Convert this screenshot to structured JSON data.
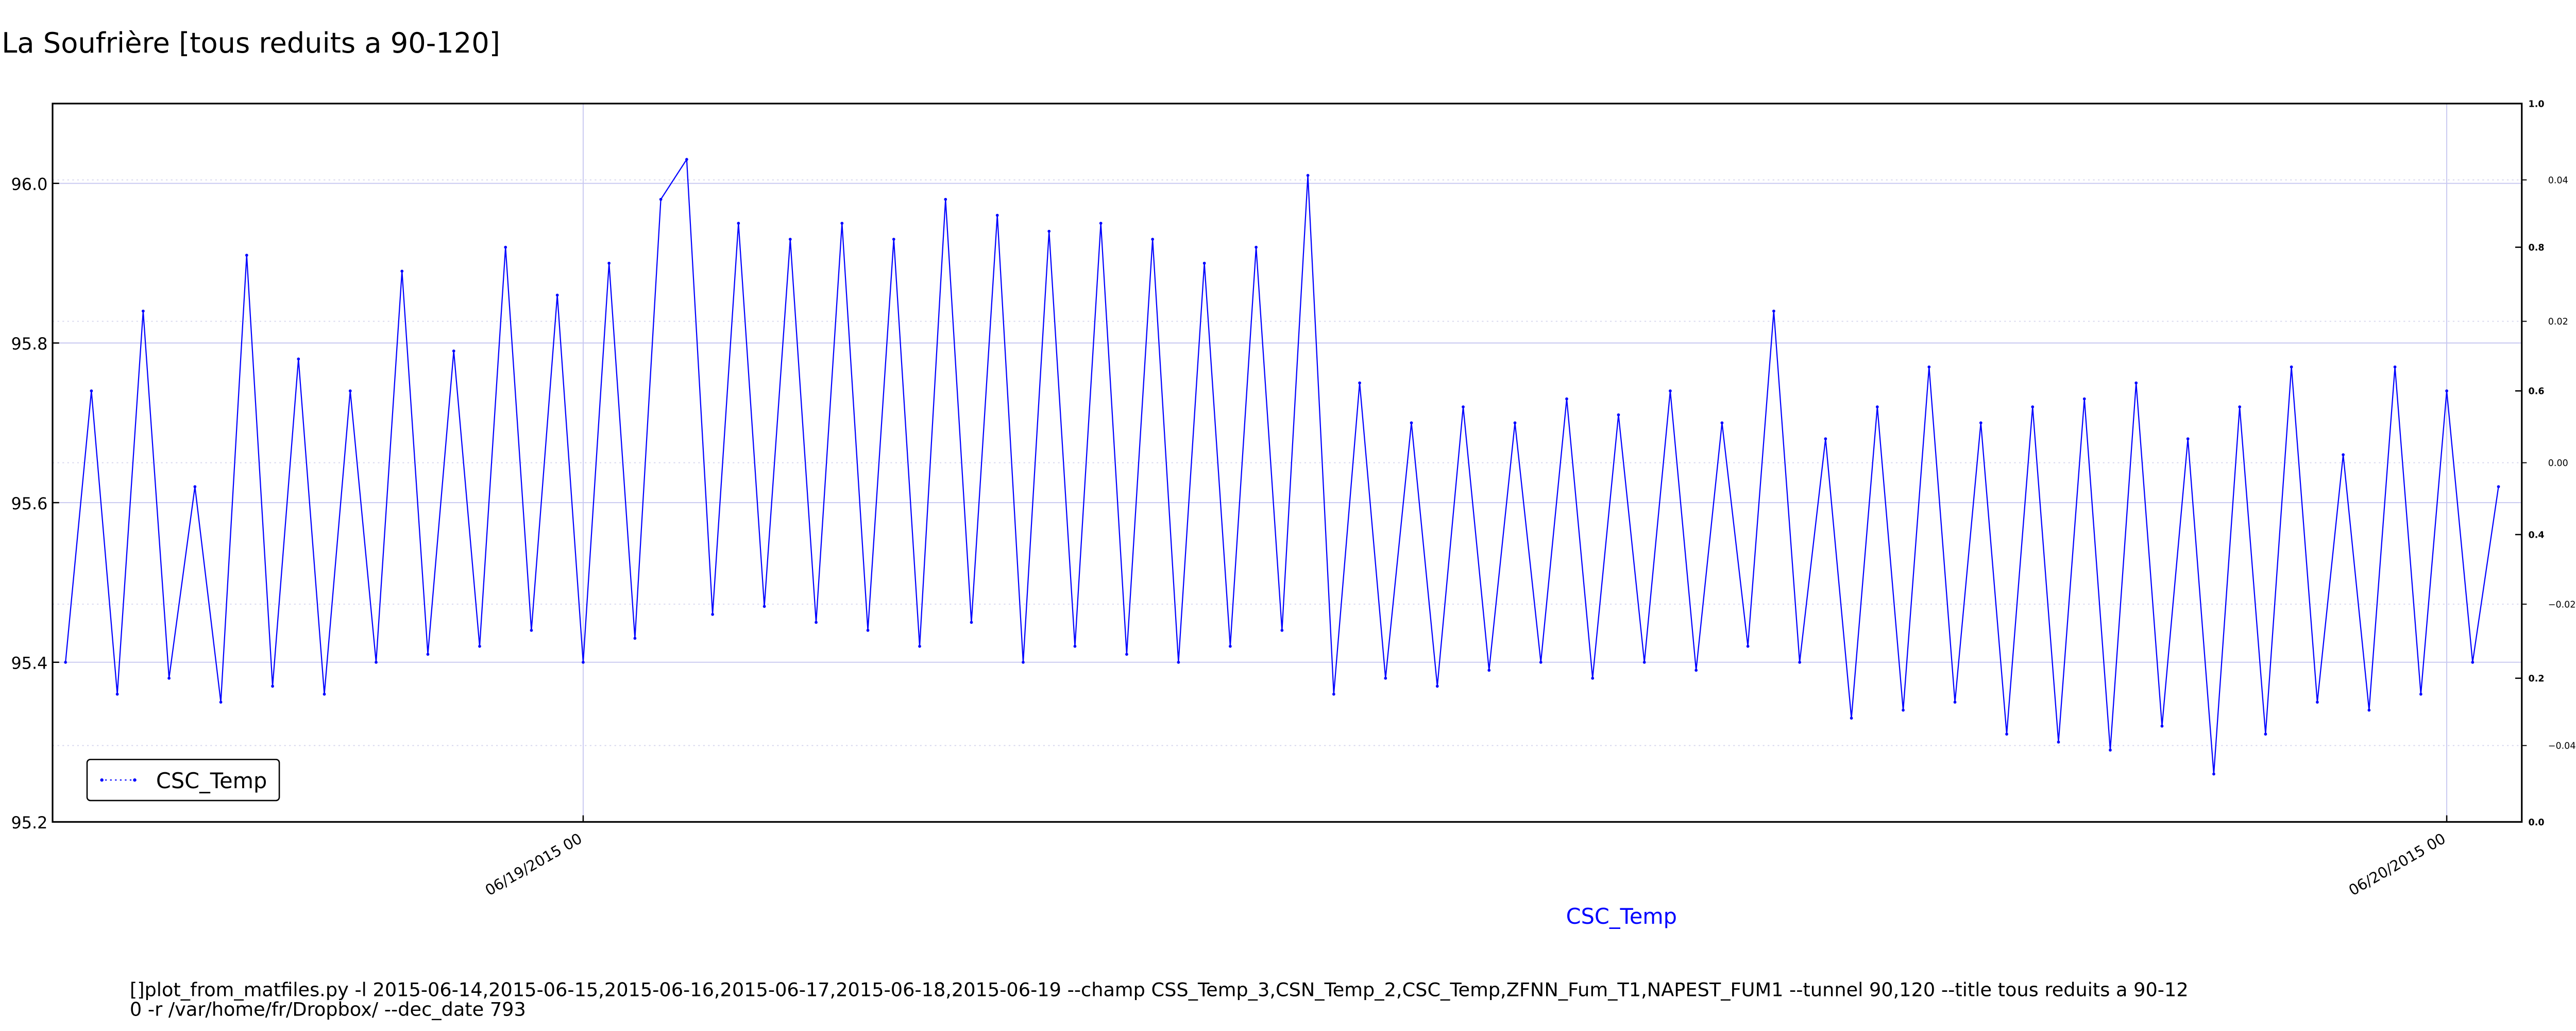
{
  "chart_data": {
    "type": "line",
    "title": "La Soufrière [tous reduits a 90-120]",
    "x_label": "CSC_Temp",
    "legend": "lower left",
    "grid": true,
    "x": [
      "2015-06-18 17:20",
      "2015-06-18 17:40",
      "2015-06-18 18:00",
      "2015-06-18 18:20",
      "2015-06-18 18:40",
      "2015-06-18 19:00",
      "2015-06-18 19:20",
      "2015-06-18 19:40",
      "2015-06-18 20:00",
      "2015-06-18 20:20",
      "2015-06-18 20:40",
      "2015-06-18 21:00",
      "2015-06-18 21:20",
      "2015-06-18 21:40",
      "2015-06-18 22:00",
      "2015-06-18 22:20",
      "2015-06-18 22:40",
      "2015-06-18 23:00",
      "2015-06-18 23:20",
      "2015-06-18 23:40",
      "2015-06-19 00:00",
      "2015-06-19 00:20",
      "2015-06-19 00:40",
      "2015-06-19 01:00",
      "2015-06-19 01:20",
      "2015-06-19 01:40",
      "2015-06-19 02:00",
      "2015-06-19 02:20",
      "2015-06-19 02:40",
      "2015-06-19 03:00",
      "2015-06-19 03:20",
      "2015-06-19 03:40",
      "2015-06-19 04:00",
      "2015-06-19 04:20",
      "2015-06-19 04:40",
      "2015-06-19 05:00",
      "2015-06-19 05:20",
      "2015-06-19 05:40",
      "2015-06-19 06:00",
      "2015-06-19 06:20",
      "2015-06-19 06:40",
      "2015-06-19 07:00",
      "2015-06-19 07:20",
      "2015-06-19 07:40",
      "2015-06-19 08:00",
      "2015-06-19 08:20",
      "2015-06-19 08:40",
      "2015-06-19 09:00",
      "2015-06-19 09:20",
      "2015-06-19 09:40",
      "2015-06-19 10:00",
      "2015-06-19 10:20",
      "2015-06-19 10:40",
      "2015-06-19 11:00",
      "2015-06-19 11:20",
      "2015-06-19 11:40",
      "2015-06-19 12:00",
      "2015-06-19 12:20",
      "2015-06-19 12:40",
      "2015-06-19 13:00",
      "2015-06-19 13:20",
      "2015-06-19 13:40",
      "2015-06-19 14:00",
      "2015-06-19 14:20",
      "2015-06-19 14:40",
      "2015-06-19 15:00",
      "2015-06-19 15:20",
      "2015-06-19 15:40",
      "2015-06-19 16:00",
      "2015-06-19 16:20",
      "2015-06-19 16:40",
      "2015-06-19 17:00",
      "2015-06-19 17:20",
      "2015-06-19 17:40",
      "2015-06-19 18:00",
      "2015-06-19 18:20",
      "2015-06-19 18:40",
      "2015-06-19 19:00",
      "2015-06-19 19:20",
      "2015-06-19 19:40",
      "2015-06-19 20:00",
      "2015-06-19 20:20",
      "2015-06-19 20:40",
      "2015-06-19 21:00",
      "2015-06-19 21:20",
      "2015-06-19 21:40",
      "2015-06-19 22:00",
      "2015-06-19 22:20",
      "2015-06-19 22:40",
      "2015-06-19 23:00",
      "2015-06-19 23:20",
      "2015-06-19 23:40",
      "2015-06-20 00:00",
      "2015-06-20 00:20",
      "2015-06-20 00:40"
    ],
    "series": [
      {
        "name": "CSC_Temp",
        "color": "#0000ff",
        "values": [
          95.4,
          95.74,
          95.36,
          95.84,
          95.38,
          95.62,
          95.35,
          95.91,
          95.37,
          95.78,
          95.36,
          95.74,
          95.4,
          95.89,
          95.41,
          95.79,
          95.42,
          95.92,
          95.44,
          95.86,
          95.4,
          95.9,
          95.43,
          95.98,
          96.03,
          95.46,
          95.95,
          95.47,
          95.93,
          95.45,
          95.95,
          95.44,
          95.93,
          95.42,
          95.98,
          95.45,
          95.96,
          95.4,
          95.94,
          95.42,
          95.95,
          95.41,
          95.93,
          95.4,
          95.9,
          95.42,
          95.92,
          95.44,
          96.01,
          95.36,
          95.75,
          95.38,
          95.7,
          95.37,
          95.72,
          95.39,
          95.7,
          95.4,
          95.73,
          95.38,
          95.71,
          95.4,
          95.74,
          95.39,
          95.7,
          95.42,
          95.84,
          95.4,
          95.68,
          95.33,
          95.72,
          95.34,
          95.77,
          95.35,
          95.7,
          95.31,
          95.72,
          95.3,
          95.73,
          95.29,
          95.75,
          95.32,
          95.68,
          95.26,
          95.72,
          95.31,
          95.77,
          95.35,
          95.66,
          95.34,
          95.77,
          95.36,
          95.74,
          95.4,
          95.62
        ]
      }
    ],
    "xlim": [
      "2015-06-18 17:10",
      "2015-06-20 00:58"
    ],
    "xticks": [
      {
        "value": "2015-06-19 00:00",
        "label": "06/19/2015 00"
      },
      {
        "value": "2015-06-20 00:00",
        "label": "06/20/2015 00"
      }
    ],
    "ylim": [
      95.2,
      96.1
    ],
    "yticks": [
      95.2,
      95.4,
      95.6,
      95.8,
      {
        "value": 96.0,
        "label": "96.0"
      }
    ],
    "y2lim": [
      0,
      1
    ],
    "y2ticks": [
      {
        "value": 0,
        "label": "0.0"
      },
      0.2,
      0.4,
      0.6,
      0.8,
      {
        "value": 1,
        "label": "1.0"
      }
    ],
    "y3lim": [
      -0.0508,
      0.0508
    ],
    "y3ticks": [
      {
        "value": -0.04,
        "label": "−0.04"
      },
      {
        "value": -0.02,
        "label": "−0.02"
      },
      {
        "value": 0,
        "label": "0.00"
      },
      0.02,
      0.04
    ]
  },
  "footer": {
    "lines": [
      "[]plot_from_matfiles.py -l 2015-06-14,2015-06-15,2015-06-16,2015-06-17,2015-06-18,2015-06-19 --champ CSS_Temp_3,CSN_Temp_2,CSC_Temp,ZFNN_Fum_T1,NAPEST_FUM1 --tunnel 90,120 --title tous reduits a 90-12",
      "0 -r /var/home/fr/Dropbox/ --dec_date 793"
    ]
  }
}
